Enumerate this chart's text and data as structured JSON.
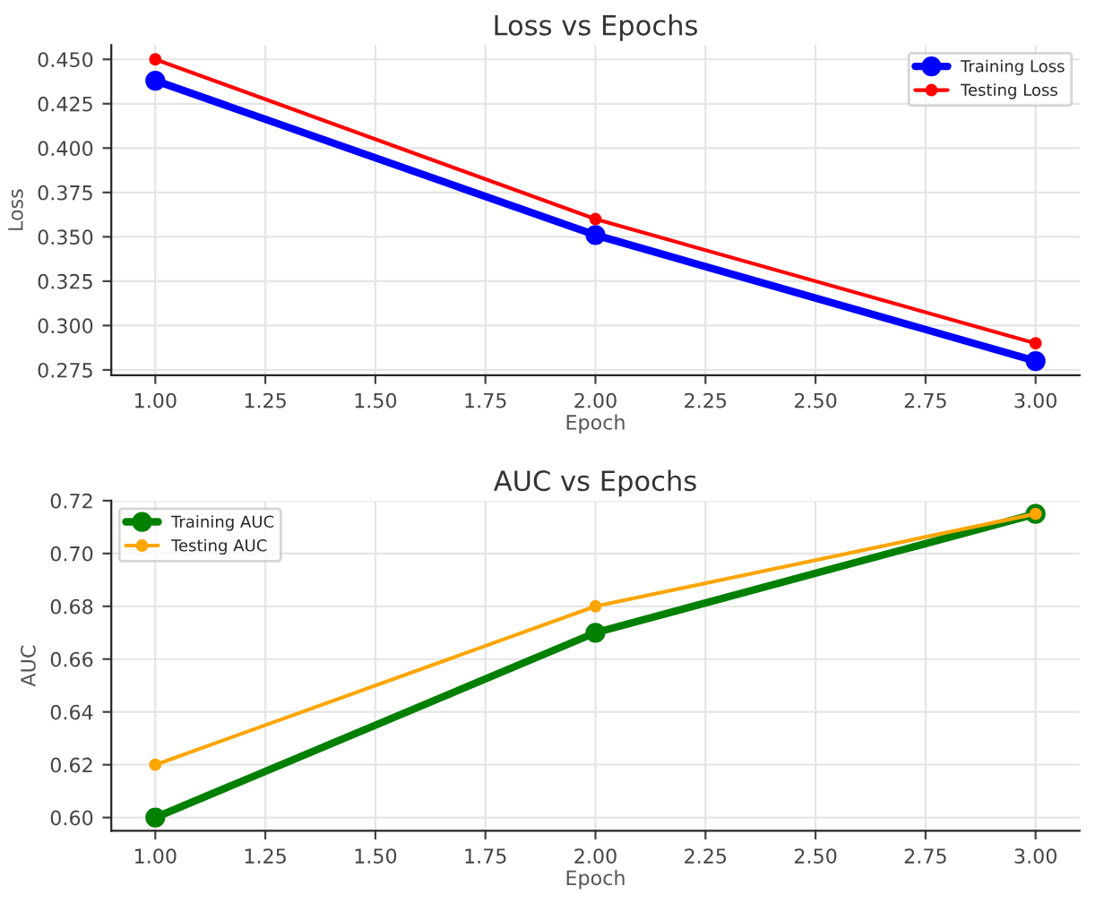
{
  "chart_data": [
    {
      "type": "line",
      "title": "Loss vs Epochs",
      "xlabel": "Epoch",
      "ylabel": "Loss",
      "x": [
        1,
        2,
        3
      ],
      "series": [
        {
          "name": "Training Loss",
          "color": "#0000ff",
          "values": [
            0.438,
            0.351,
            0.28
          ]
        },
        {
          "name": "Testing Loss",
          "color": "#ff0000",
          "values": [
            0.45,
            0.36,
            0.29
          ]
        }
      ],
      "xlim": [
        0.9,
        3.1
      ],
      "xticks": [
        {
          "value": 1,
          "label": "1.00"
        },
        {
          "value": 1.25,
          "label": "1.25"
        },
        {
          "value": 1.5,
          "label": "1.50"
        },
        {
          "value": 1.75,
          "label": "1.75"
        },
        {
          "value": 2,
          "label": "2.00"
        },
        {
          "value": 2.25,
          "label": "2.25"
        },
        {
          "value": 2.5,
          "label": "2.50"
        },
        {
          "value": 2.75,
          "label": "2.75"
        },
        {
          "value": 3,
          "label": "3.00"
        }
      ],
      "ylim": [
        0.272,
        0.458
      ],
      "yticks": [
        {
          "value": 0.275,
          "label": "0.275"
        },
        {
          "value": 0.3,
          "label": "0.300"
        },
        {
          "value": 0.325,
          "label": "0.325"
        },
        {
          "value": 0.35,
          "label": "0.350"
        },
        {
          "value": 0.375,
          "label": "0.375"
        },
        {
          "value": 0.4,
          "label": "0.400"
        },
        {
          "value": 0.425,
          "label": "0.425"
        },
        {
          "value": 0.45,
          "label": "0.450"
        }
      ],
      "grid": true,
      "legend": "top right",
      "marker": "circle",
      "line_style": "solid"
    },
    {
      "type": "line",
      "title": "AUC vs Epochs",
      "xlabel": "Epoch",
      "ylabel": "AUC",
      "x": [
        1,
        2,
        3
      ],
      "series": [
        {
          "name": "Training AUC",
          "color": "#008000",
          "values": [
            0.6,
            0.67,
            0.715
          ]
        },
        {
          "name": "Testing AUC",
          "color": "#ffa500",
          "values": [
            0.62,
            0.68,
            0.715
          ]
        }
      ],
      "xlim": [
        0.9,
        3.1
      ],
      "xticks": [
        {
          "value": 1,
          "label": "1.00"
        },
        {
          "value": 1.25,
          "label": "1.25"
        },
        {
          "value": 1.5,
          "label": "1.50"
        },
        {
          "value": 1.75,
          "label": "1.75"
        },
        {
          "value": 2,
          "label": "2.00"
        },
        {
          "value": 2.25,
          "label": "2.25"
        },
        {
          "value": 2.5,
          "label": "2.50"
        },
        {
          "value": 2.75,
          "label": "2.75"
        },
        {
          "value": 3,
          "label": "3.00"
        }
      ],
      "ylim": [
        0.595,
        0.72
      ],
      "yticks": [
        {
          "value": 0.6,
          "label": "0.60"
        },
        {
          "value": 0.62,
          "label": "0.62"
        },
        {
          "value": 0.64,
          "label": "0.64"
        },
        {
          "value": 0.66,
          "label": "0.66"
        },
        {
          "value": 0.68,
          "label": "0.68"
        },
        {
          "value": 0.7,
          "label": "0.70"
        },
        {
          "value": 0.72,
          "label": "0.72"
        }
      ],
      "grid": true,
      "legend": "top left",
      "marker": "circle",
      "line_style": "solid"
    }
  ]
}
